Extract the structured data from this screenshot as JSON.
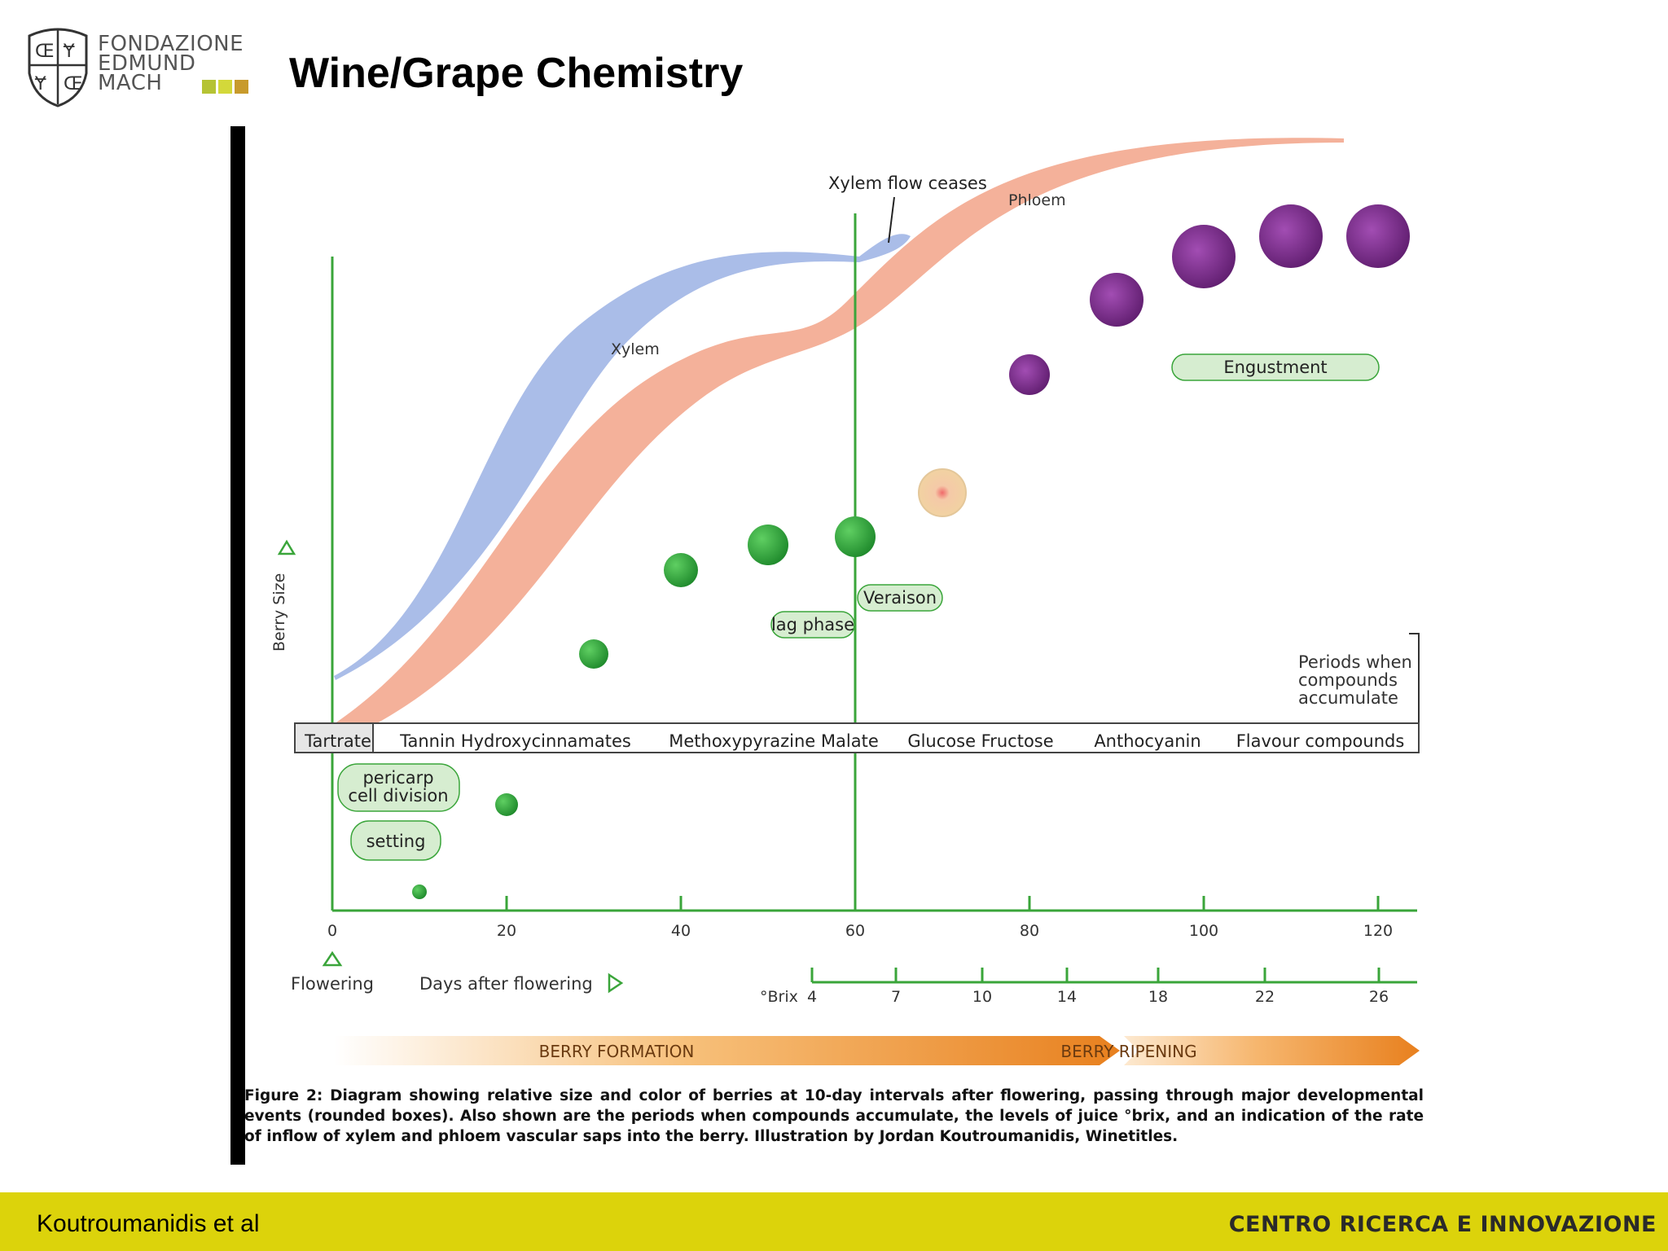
{
  "logo": {
    "line1": "FONDAZIONE",
    "line2": "EDMUND",
    "line3": "MACH",
    "squares": [
      "#b5c334",
      "#d3d83a",
      "#c89a2c"
    ]
  },
  "page_title": "Wine/Grape Chemistry",
  "diagram": {
    "xylem_label": "Xylem",
    "phloem_label": "Phloem",
    "xylem_ceases_label": "Xylem flow ceases",
    "y_axis_label": "Berry Size",
    "events": {
      "veraison": "Veraison",
      "lag_phase": "lag phase",
      "engustment": "Engustment",
      "pericarp_line1": "pericarp",
      "pericarp_line2": "cell division",
      "setting": "setting"
    },
    "periods_line1": "Periods when",
    "periods_line2": "compounds",
    "periods_line3": "accumulate",
    "compounds": [
      "Tartrate",
      "Tannin Hydroxycinnamates",
      "Methoxypyrazine Malate",
      "Glucose Fructose",
      "Anthocyanin",
      "Flavour compounds"
    ],
    "days_ticks": [
      "0",
      "20",
      "40",
      "60",
      "80",
      "100",
      "120"
    ],
    "flowering_label": "Flowering",
    "days_label": "Days after flowering",
    "brix_label": "°Brix",
    "brix_ticks": [
      "4",
      "7",
      "10",
      "14",
      "18",
      "22",
      "26"
    ],
    "phase_formation": "BERRY FORMATION",
    "phase_ripening": "BERRY RIPENING",
    "berries": [
      {
        "day": 10,
        "size": 1,
        "color": "#2e9e3a"
      },
      {
        "day": 20,
        "size": 2,
        "color": "#2e9e3a"
      },
      {
        "day": 30,
        "size": 3,
        "color": "#2e9e3a"
      },
      {
        "day": 40,
        "size": 4,
        "color": "#2e9e3a"
      },
      {
        "day": 50,
        "size": 5,
        "color": "#2e9e3a"
      },
      {
        "day": 60,
        "size": 5,
        "color": "#2e9e3a"
      },
      {
        "day": 70,
        "size": 5,
        "color": "#f2d7a6"
      },
      {
        "day": 80,
        "size": 6,
        "color": "#7a2a8a"
      },
      {
        "day": 90,
        "size": 7,
        "color": "#7a2a8a"
      },
      {
        "day": 100,
        "size": 8,
        "color": "#7a2a8a"
      },
      {
        "day": 110,
        "size": 8,
        "color": "#7a2a8a"
      },
      {
        "day": 120,
        "size": 8,
        "color": "#7a2a8a"
      }
    ],
    "colors": {
      "axis_green": "#3aa53a",
      "xylem": "#aabde8",
      "phloem": "#f4b19a",
      "event_fill": "#d6edd0",
      "arrow_orange": "#e8801e"
    }
  },
  "caption": "Figure 2: Diagram showing relative size and color of berries at 10-day intervals after flowering, passing through major developmental events (rounded boxes). Also shown are the periods when compounds accumulate, the levels of juice °brix, and an indication of the rate of inflow of xylem and phloem vascular saps into the berry. Illustration by Jordan Koutroumanidis, Winetitles.",
  "footer": {
    "left": "Koutroumanidis et al",
    "right": "CENTRO RICERCA E INNOVAZIONE"
  }
}
